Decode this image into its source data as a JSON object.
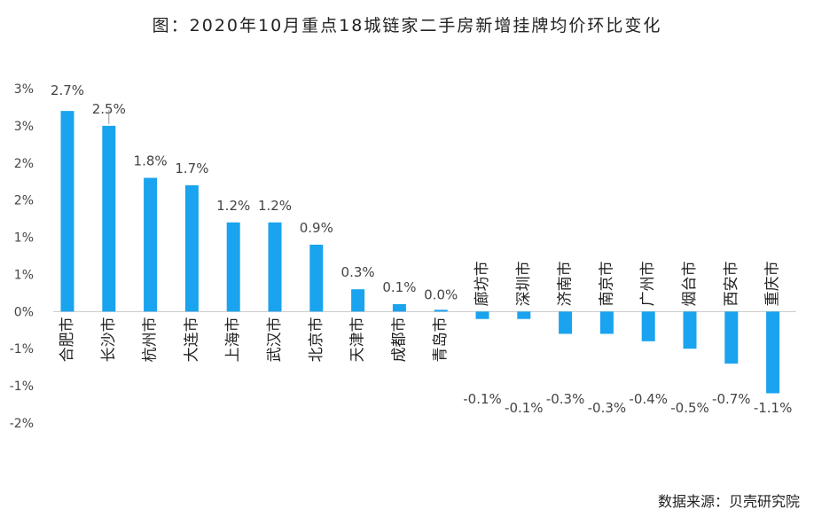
{
  "chart_data": {
    "type": "bar",
    "title": "图：2020年10月重点18城链家二手房新增挂牌均价环比变化",
    "source": "数据来源：贝壳研究院",
    "categories": [
      "合肥市",
      "长沙市",
      "杭州市",
      "大连市",
      "上海市",
      "武汉市",
      "北京市",
      "天津市",
      "成都市",
      "青岛市",
      "廊坊市",
      "深圳市",
      "济南市",
      "南京市",
      "广州市",
      "烟台市",
      "西安市",
      "重庆市"
    ],
    "values": [
      2.7,
      2.5,
      1.8,
      1.7,
      1.2,
      1.2,
      0.9,
      0.3,
      0.1,
      0.0,
      -0.1,
      -0.1,
      -0.3,
      -0.3,
      -0.4,
      -0.5,
      -0.7,
      -1.1
    ],
    "value_labels": [
      "2.7%",
      "2.5%",
      "1.8%",
      "1.7%",
      "1.2%",
      "1.2%",
      "0.9%",
      "0.3%",
      "0.1%",
      "0.0%",
      "-0.1%",
      "-0.1%",
      "-0.3%",
      "-0.3%",
      "-0.4%",
      "-0.5%",
      "-0.7%",
      "-1.1%"
    ],
    "y_tick_labels": [
      "3%",
      "3%",
      "2%",
      "2%",
      "1%",
      "1%",
      "0%",
      "-1%",
      "-1%",
      "-2%"
    ],
    "ylim": [
      -1.5,
      3.0
    ],
    "grid": false,
    "legend": "none",
    "bar_color": "#1aa3ee"
  }
}
